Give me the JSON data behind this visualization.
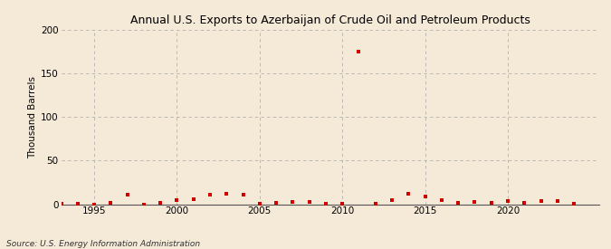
{
  "title": "Annual U.S. Exports to Azerbaijan of Crude Oil and Petroleum Products",
  "ylabel": "Thousand Barrels",
  "source": "Source: U.S. Energy Information Administration",
  "background_color": "#f5ead8",
  "plot_background_color": "#f5ead8",
  "grid_color": "#b0b0b0",
  "marker_color": "#cc0000",
  "xlim": [
    1993.0,
    2025.5
  ],
  "ylim": [
    0,
    200
  ],
  "yticks": [
    0,
    50,
    100,
    150,
    200
  ],
  "xticks": [
    1995,
    2000,
    2005,
    2010,
    2015,
    2020
  ],
  "years": [
    1993,
    1994,
    1995,
    1996,
    1997,
    1998,
    1999,
    2000,
    2001,
    2002,
    2003,
    2004,
    2005,
    2006,
    2007,
    2008,
    2009,
    2010,
    2011,
    2012,
    2013,
    2014,
    2015,
    2016,
    2017,
    2018,
    2019,
    2020,
    2021,
    2022,
    2023,
    2024
  ],
  "values": [
    1,
    1,
    0,
    2,
    11,
    0,
    2,
    5,
    6,
    11,
    12,
    11,
    1,
    2,
    3,
    3,
    1,
    1,
    175,
    1,
    5,
    12,
    9,
    5,
    2,
    3,
    2,
    4,
    2,
    4,
    4,
    1
  ]
}
